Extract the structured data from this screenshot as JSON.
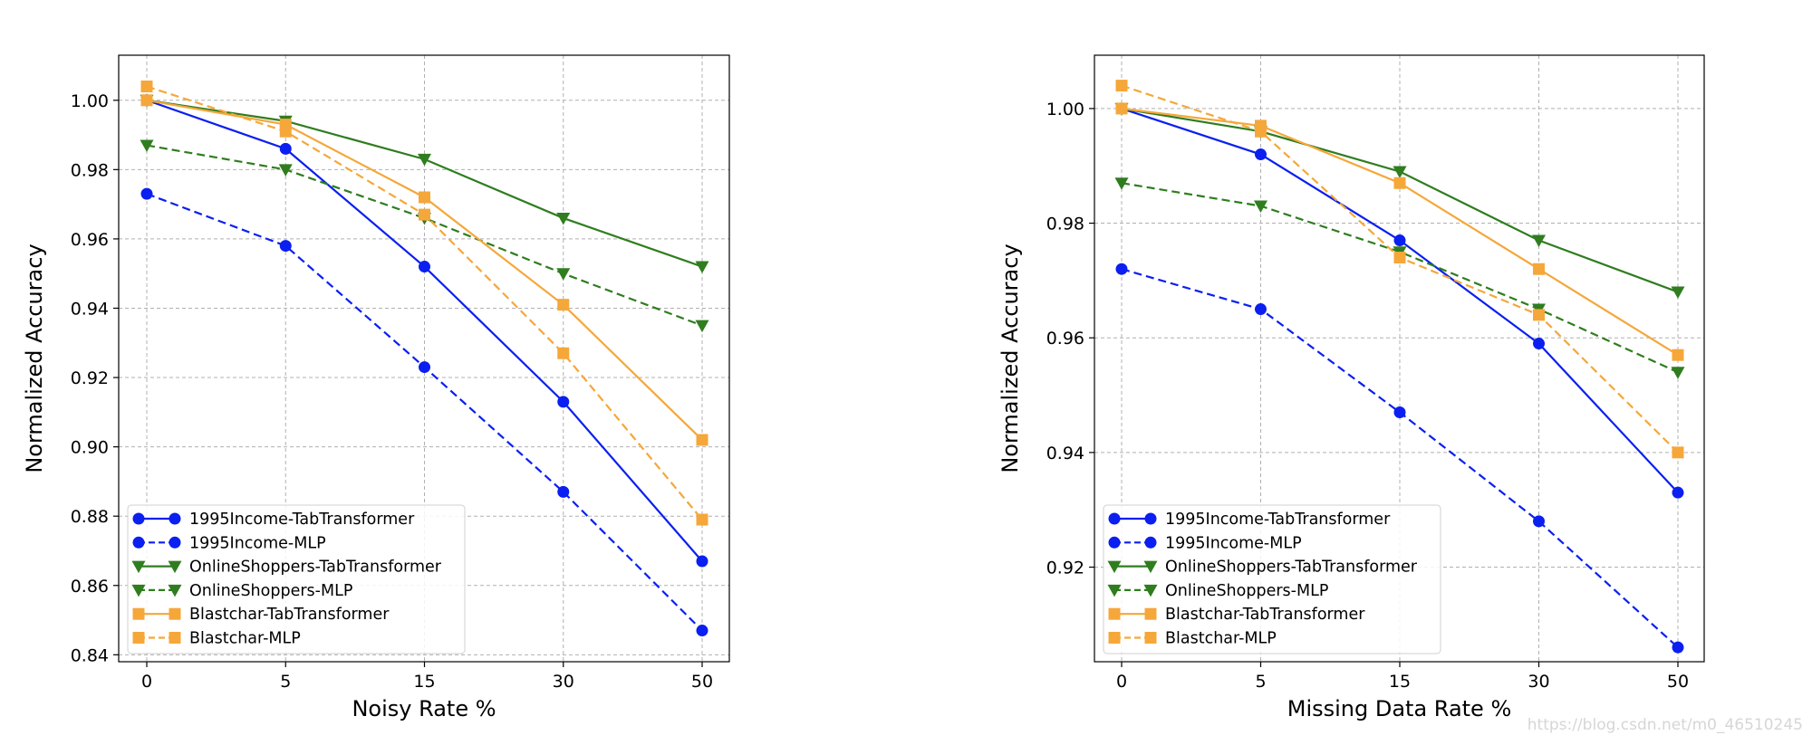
{
  "chart_data": [
    {
      "type": "line",
      "categories": [
        "0",
        "5",
        "15",
        "30",
        "50"
      ],
      "xlabel": "Noisy Rate %",
      "ylabel": "Normalized Accuracy",
      "ylim": [
        0.838,
        1.013
      ],
      "yticks": [
        0.84,
        0.86,
        0.88,
        0.9,
        0.92,
        0.94,
        0.96,
        0.98,
        1.0
      ],
      "ytick_labels": [
        "0.84",
        "0.86",
        "0.88",
        "0.90",
        "0.92",
        "0.94",
        "0.96",
        "0.98",
        "1.00"
      ],
      "grid": true,
      "legend_position": "lower-left",
      "series": [
        {
          "name": "1995Income-TabTransformer",
          "values": [
            1.0,
            0.986,
            0.952,
            0.913,
            0.867
          ],
          "color": "#0a1ff0",
          "marker": "circle",
          "dashed": false
        },
        {
          "name": "1995Income-MLP",
          "values": [
            0.973,
            0.958,
            0.923,
            0.887,
            0.847
          ],
          "color": "#0a1ff0",
          "marker": "circle",
          "dashed": true
        },
        {
          "name": "OnlineShoppers-TabTransformer",
          "values": [
            1.0,
            0.994,
            0.983,
            0.966,
            0.952
          ],
          "color": "#2f7d1f",
          "marker": "triangle-down",
          "dashed": false
        },
        {
          "name": "OnlineShoppers-MLP",
          "values": [
            0.987,
            0.98,
            0.966,
            0.95,
            0.935
          ],
          "color": "#2f7d1f",
          "marker": "triangle-down",
          "dashed": true
        },
        {
          "name": "Blastchar-TabTransformer",
          "values": [
            1.0,
            0.993,
            0.972,
            0.941,
            0.902
          ],
          "color": "#f5a73a",
          "marker": "square",
          "dashed": false
        },
        {
          "name": "Blastchar-MLP",
          "values": [
            1.004,
            0.991,
            0.967,
            0.927,
            0.879
          ],
          "color": "#f5a73a",
          "marker": "square",
          "dashed": true
        }
      ]
    },
    {
      "type": "line",
      "categories": [
        "0",
        "5",
        "15",
        "30",
        "50"
      ],
      "xlabel": "Missing Data Rate %",
      "ylabel": "Normalized Accuracy",
      "ylim": [
        0.9035,
        1.0093
      ],
      "yticks": [
        0.92,
        0.94,
        0.96,
        0.98,
        1.0
      ],
      "ytick_labels": [
        "0.92",
        "0.94",
        "0.96",
        "0.98",
        "1.00"
      ],
      "grid": true,
      "legend_position": "lower-left",
      "series": [
        {
          "name": "1995Income-TabTransformer",
          "values": [
            1.0,
            0.992,
            0.977,
            0.959,
            0.933
          ],
          "color": "#0a1ff0",
          "marker": "circle",
          "dashed": false
        },
        {
          "name": "1995Income-MLP",
          "values": [
            0.972,
            0.965,
            0.947,
            0.928,
            0.906
          ],
          "color": "#0a1ff0",
          "marker": "circle",
          "dashed": true
        },
        {
          "name": "OnlineShoppers-TabTransformer",
          "values": [
            1.0,
            0.996,
            0.989,
            0.977,
            0.968
          ],
          "color": "#2f7d1f",
          "marker": "triangle-down",
          "dashed": false
        },
        {
          "name": "OnlineShoppers-MLP",
          "values": [
            0.987,
            0.983,
            0.975,
            0.965,
            0.954
          ],
          "color": "#2f7d1f",
          "marker": "triangle-down",
          "dashed": true
        },
        {
          "name": "Blastchar-TabTransformer",
          "values": [
            1.0,
            0.997,
            0.987,
            0.972,
            0.957
          ],
          "color": "#f5a73a",
          "marker": "square",
          "dashed": false
        },
        {
          "name": "Blastchar-MLP",
          "values": [
            1.004,
            0.996,
            0.974,
            0.964,
            0.94
          ],
          "color": "#f5a73a",
          "marker": "square",
          "dashed": true
        }
      ]
    }
  ],
  "watermark": "https://blog.csdn.net/m0_46510245"
}
